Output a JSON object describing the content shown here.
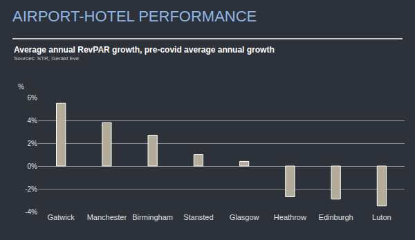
{
  "chart_data": {
    "type": "bar",
    "title": "AIRPORT-HOTEL PERFORMANCE",
    "subtitle": "Average annual RevPAR growth, pre-covid average annual growth",
    "source": "Sources: STR, Gerald Eve",
    "ylabel": "%",
    "categories": [
      "Gatwick",
      "Manchester",
      "Birmingham",
      "Stansted",
      "Glasgow",
      "Heathrow",
      "Edinburgh",
      "Luton"
    ],
    "values": [
      5.5,
      3.8,
      2.7,
      1.0,
      0.4,
      -2.7,
      -2.9,
      -3.5
    ],
    "color": "#b3ac98",
    "ylim": [
      -4,
      6
    ],
    "yticks": [
      {
        "value": -4,
        "label": "-4%"
      },
      {
        "value": -2,
        "label": "-2%"
      },
      {
        "value": 0,
        "label": "0%"
      },
      {
        "value": 2,
        "label": "2%"
      },
      {
        "value": 4,
        "label": "4%"
      },
      {
        "value": 6,
        "label": "6%"
      }
    ],
    "grid": true
  }
}
